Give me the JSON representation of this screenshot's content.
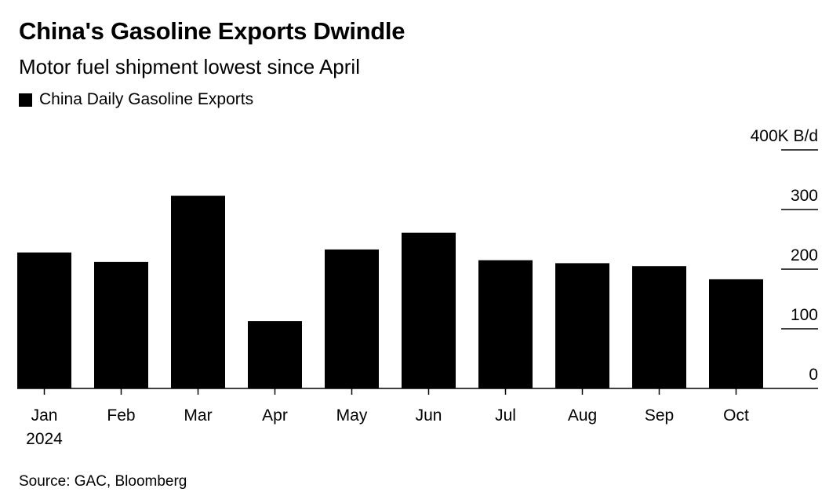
{
  "title": "China's Gasoline Exports Dwindle",
  "subtitle": "Motor fuel shipment lowest since April",
  "legend_label": "China Daily Gasoline Exports",
  "source": "Source: GAC, Bloomberg",
  "chart_data": {
    "type": "bar",
    "categories": [
      "Jan",
      "Feb",
      "Mar",
      "Apr",
      "May",
      "Jun",
      "Jul",
      "Aug",
      "Sep",
      "Oct"
    ],
    "year_label": "2024",
    "series": [
      {
        "name": "China Daily Gasoline Exports",
        "values": [
          228,
          212,
          323,
          113,
          233,
          261,
          215,
          210,
          205,
          183
        ]
      }
    ],
    "y_ticks": [
      "0",
      "100",
      "200",
      "300",
      "400K B/d"
    ],
    "ylim": [
      0,
      400
    ],
    "ylabel": "",
    "xlabel": "",
    "y_axis_side": "right",
    "bar_color": "#000000",
    "grid": false
  }
}
